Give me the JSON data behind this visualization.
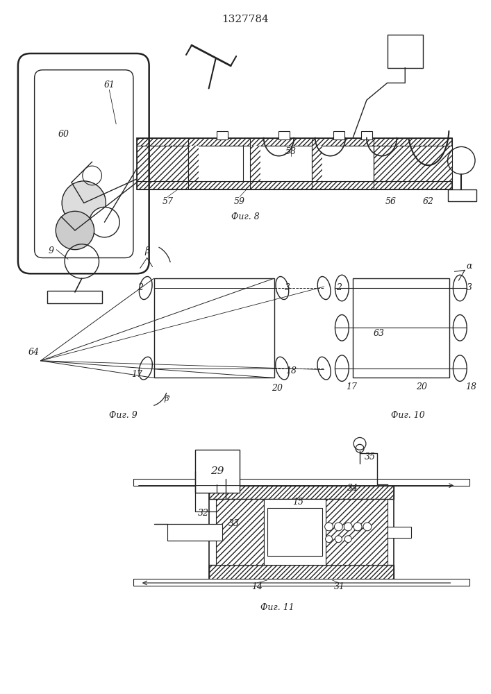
{
  "title": "1327784",
  "title_fontsize": 10,
  "fig8_label": "Фиг. 8",
  "fig9_label": "Фиг. 9",
  "fig10_label": "Фиг. 10",
  "fig11_label": "Фиг. 11",
  "bg_color": "#ffffff",
  "line_color": "#222222"
}
